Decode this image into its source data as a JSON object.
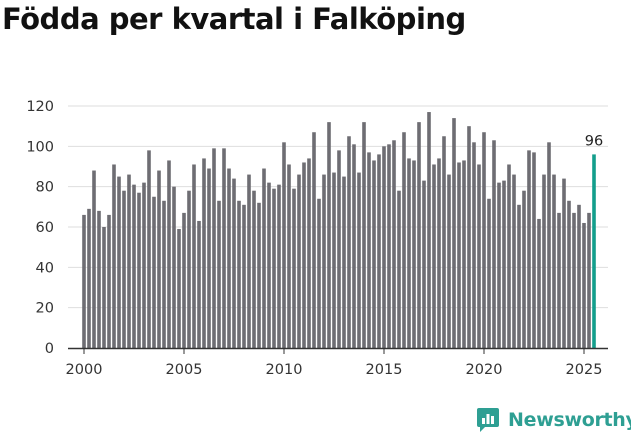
{
  "title": "Födda per kvartal i Falköping",
  "brand": {
    "name": "Newsworthy",
    "icon": "newsworthy-logo-icon"
  },
  "colors": {
    "bar": "#6e6d73",
    "highlight": "#139e8c",
    "grid": "#dedede",
    "axis": "#333333",
    "brand": "#2e9f93"
  },
  "chart_data": {
    "type": "bar",
    "title": "Födda per kvartal i Falköping",
    "xlabel": "",
    "ylabel": "",
    "ylim": [
      0,
      120
    ],
    "yticks": [
      0,
      20,
      40,
      60,
      80,
      100,
      120
    ],
    "xticks": [
      2000,
      2005,
      2010,
      2015,
      2020,
      2025
    ],
    "xlim": [
      1999.2,
      2026.2
    ],
    "grid": "horizontal",
    "highlight_label": "96",
    "series": [
      {
        "values": [
          66,
          69,
          88,
          68,
          60,
          66,
          91,
          85,
          78,
          86,
          81,
          77,
          82,
          98,
          75,
          88,
          73,
          93,
          80,
          59,
          67,
          78,
          91,
          63,
          94,
          89,
          99,
          73,
          99,
          89,
          84,
          73,
          71,
          86,
          78,
          72,
          89,
          82,
          79,
          81,
          102,
          91,
          79,
          86,
          92,
          94,
          107,
          74,
          86,
          112,
          87,
          98,
          85,
          105,
          101,
          87,
          112,
          97,
          93,
          96,
          100,
          101,
          103,
          78,
          107,
          94,
          93,
          112,
          83,
          117,
          91,
          94,
          105,
          86,
          114,
          92,
          93,
          110,
          102,
          91,
          107,
          74,
          103,
          82,
          83,
          91,
          86,
          71,
          78,
          98,
          97,
          64,
          86,
          102,
          86,
          67,
          84,
          73,
          67,
          71,
          62,
          67,
          96
        ]
      }
    ],
    "start": {
      "year": 2000,
      "quarter": 1
    }
  }
}
